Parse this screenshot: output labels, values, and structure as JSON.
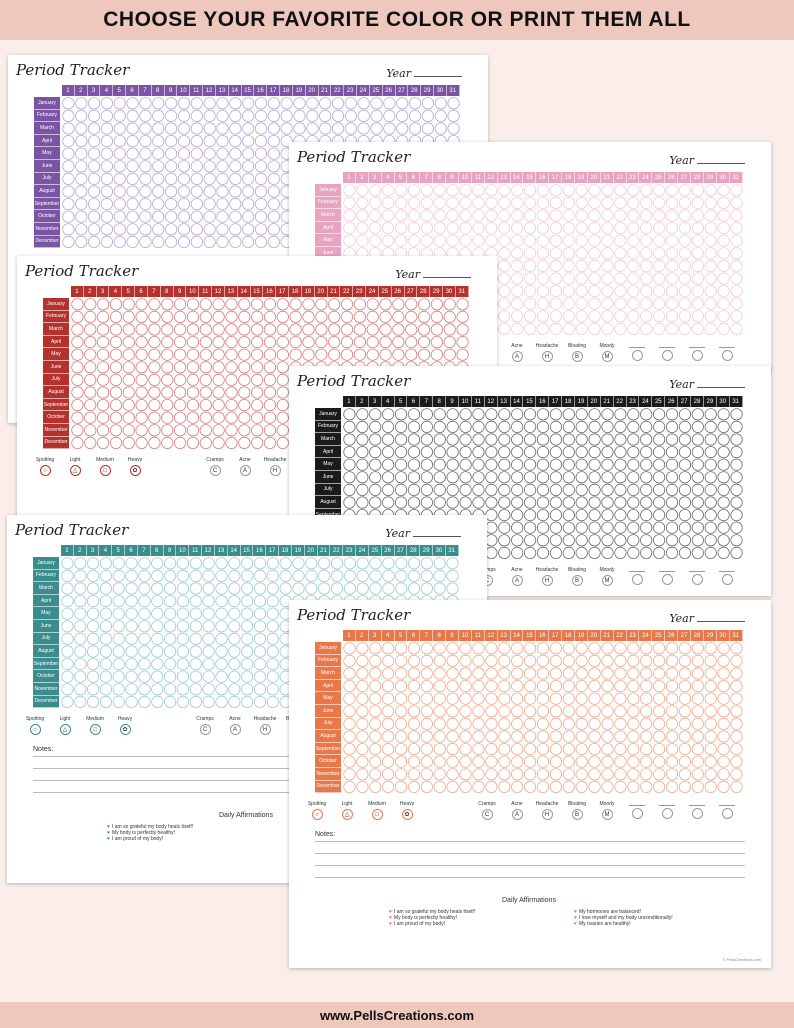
{
  "banner": {
    "text": "CHOOSE YOUR FAVORITE COLOR OR PRINT THEM ALL"
  },
  "footer": {
    "text": "www.PellsCreations.com"
  },
  "tracker": {
    "title": "Period Tracker",
    "year_label": "Year",
    "days": [
      "1",
      "2",
      "3",
      "4",
      "5",
      "6",
      "7",
      "8",
      "9",
      "10",
      "11",
      "12",
      "13",
      "14",
      "15",
      "16",
      "17",
      "18",
      "19",
      "20",
      "21",
      "22",
      "23",
      "24",
      "25",
      "26",
      "27",
      "28",
      "29",
      "30",
      "31"
    ],
    "months": [
      "January",
      "February",
      "March",
      "April",
      "May",
      "June",
      "July",
      "August",
      "September",
      "October",
      "November",
      "December"
    ],
    "flow_labels": [
      "Spotting",
      "Light",
      "Medium",
      "Heavy"
    ],
    "symptom_labels": [
      "Cramps",
      "Acne",
      "Headache",
      "Bloating",
      "Moody"
    ],
    "symptom_letters": [
      "C",
      "A",
      "H",
      "B",
      "M"
    ],
    "notes_label": "Notes:",
    "affirmations_title": "Daily Affirmations",
    "affirmations_left": [
      "I am so grateful my body heals itself!",
      "My body is perfectly healthy!",
      "I am proud of my body!"
    ],
    "affirmations_right": [
      "My hormones are balanced!",
      "I love myself and my body unconditionally!",
      "My ovaries are healthy!"
    ],
    "copyright": "© PellsCreations.com"
  },
  "sheets": [
    {
      "id": "purple",
      "color": "#7a55a3",
      "ring": "#b7a5d4"
    },
    {
      "id": "pink",
      "color": "#e8a3c0",
      "ring": "#f2c9d8"
    },
    {
      "id": "red",
      "color": "#b5312c",
      "ring": "#d77b76"
    },
    {
      "id": "black",
      "color": "#1b1b1b",
      "ring": "#6b6b6b"
    },
    {
      "id": "teal",
      "color": "#3b8d8d",
      "ring": "#9ccaca"
    },
    {
      "id": "orange",
      "color": "#e8784a",
      "ring": "#f0a88a"
    }
  ]
}
